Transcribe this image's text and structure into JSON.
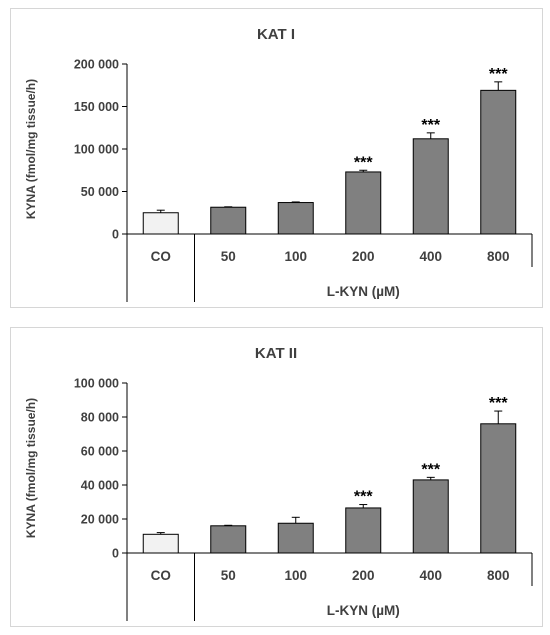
{
  "chart_data": [
    {
      "type": "bar",
      "title": "KAT I",
      "ylabel": "KYNA (fmol/mg tissue/h)",
      "group_label": "L-KYN (µM)",
      "categories": [
        "CO",
        "50",
        "100",
        "200",
        "400",
        "800"
      ],
      "values": [
        25000,
        31500,
        37000,
        73000,
        112000,
        169000
      ],
      "errors": [
        3000,
        500,
        700,
        2000,
        7000,
        10000
      ],
      "significance": [
        "",
        "",
        "",
        "***",
        "***",
        "***"
      ],
      "ylim": [
        0,
        200000
      ],
      "yticks": [
        0,
        50000,
        100000,
        150000,
        200000
      ],
      "ytick_labels": [
        "0",
        "50 000",
        "100 000",
        "150 000",
        "200 000"
      ],
      "grid": false,
      "colors": {
        "control": "#f2f2f2",
        "treatment": "#808080",
        "edge": "#000000"
      }
    },
    {
      "type": "bar",
      "title": "KAT II",
      "ylabel": "KYNA (fmol/mg tissue/h)",
      "group_label": "L-KYN (µM)",
      "categories": [
        "CO",
        "50",
        "100",
        "200",
        "400",
        "800"
      ],
      "values": [
        11000,
        16000,
        17500,
        26500,
        43000,
        76000
      ],
      "errors": [
        1000,
        300,
        3500,
        2000,
        1500,
        7500
      ],
      "significance": [
        "",
        "",
        "",
        "***",
        "***",
        "***"
      ],
      "ylim": [
        0,
        100000
      ],
      "yticks": [
        0,
        20000,
        40000,
        60000,
        80000,
        100000
      ],
      "ytick_labels": [
        "0",
        "20 000",
        "40 000",
        "60 000",
        "80 000",
        "100 000"
      ],
      "grid": false,
      "colors": {
        "control": "#f2f2f2",
        "treatment": "#808080",
        "edge": "#000000"
      }
    }
  ]
}
